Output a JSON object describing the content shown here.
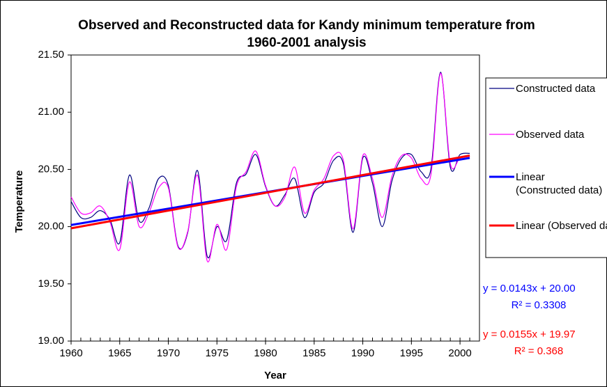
{
  "chart_data": {
    "type": "line",
    "title": "Observed and Reconstructed data for Kandy minimum temperature from 1960-2001 analysis",
    "x_label": "Year",
    "y_label": "Temperature",
    "x": [
      1960,
      1961,
      1962,
      1963,
      1964,
      1965,
      1966,
      1967,
      1968,
      1969,
      1970,
      1971,
      1972,
      1973,
      1974,
      1975,
      1976,
      1977,
      1978,
      1979,
      1980,
      1981,
      1982,
      1983,
      1984,
      1985,
      1986,
      1987,
      1988,
      1989,
      1990,
      1991,
      1992,
      1993,
      1994,
      1995,
      1996,
      1997,
      1998,
      1999,
      2000,
      2001
    ],
    "series": [
      {
        "name": "Constructed data",
        "color": "#000080",
        "values": [
          20.22,
          20.08,
          20.08,
          20.14,
          20.06,
          19.86,
          20.45,
          20.05,
          20.16,
          20.42,
          20.36,
          19.83,
          19.95,
          20.49,
          19.74,
          20.0,
          19.88,
          20.38,
          20.46,
          20.63,
          20.35,
          20.18,
          20.28,
          20.42,
          20.08,
          20.3,
          20.38,
          20.58,
          20.55,
          19.95,
          20.6,
          20.38,
          20.0,
          20.4,
          20.6,
          20.63,
          20.48,
          20.5,
          21.35,
          20.52,
          20.63,
          20.64
        ]
      },
      {
        "name": "Observed data",
        "color": "#ff00ff",
        "values": [
          20.26,
          20.12,
          20.12,
          20.18,
          20.04,
          19.8,
          20.39,
          20.0,
          20.12,
          20.34,
          20.34,
          19.82,
          19.96,
          20.45,
          19.7,
          20.02,
          19.8,
          20.35,
          20.48,
          20.66,
          20.36,
          20.18,
          20.26,
          20.52,
          20.12,
          20.32,
          20.42,
          20.62,
          20.58,
          19.98,
          20.62,
          20.42,
          20.08,
          20.44,
          20.62,
          20.6,
          20.42,
          20.45,
          21.34,
          20.55,
          20.6,
          20.62
        ]
      }
    ],
    "trendlines": [
      {
        "name": "Linear (Constructed data)",
        "color": "#0000ff",
        "slope": 0.0143,
        "intercept": 20.0,
        "equation": "y = 0.0143x + 20.00",
        "r2": "R² = 0.3308"
      },
      {
        "name": "Linear (Observed data)",
        "color": "#ff0000",
        "slope": 0.0155,
        "intercept": 19.97,
        "equation": "y = 0.0155x + 19.97",
        "r2": "R² = 0.368"
      }
    ],
    "xlim": [
      1960,
      2002
    ],
    "xticks": [
      1960,
      1965,
      1970,
      1975,
      1980,
      1985,
      1990,
      1995,
      2000
    ],
    "ylim": [
      19.0,
      21.5
    ],
    "yticks": [
      {
        "value": 19.0,
        "label": "19.00"
      },
      {
        "value": 19.5,
        "label": "19.50"
      },
      {
        "value": 20.0,
        "label": "20.00"
      },
      {
        "value": 20.5,
        "label": "20.50"
      },
      {
        "value": 21.0,
        "label": "21.00"
      },
      {
        "value": 21.5,
        "label": "21.50"
      }
    ],
    "grid": false
  }
}
